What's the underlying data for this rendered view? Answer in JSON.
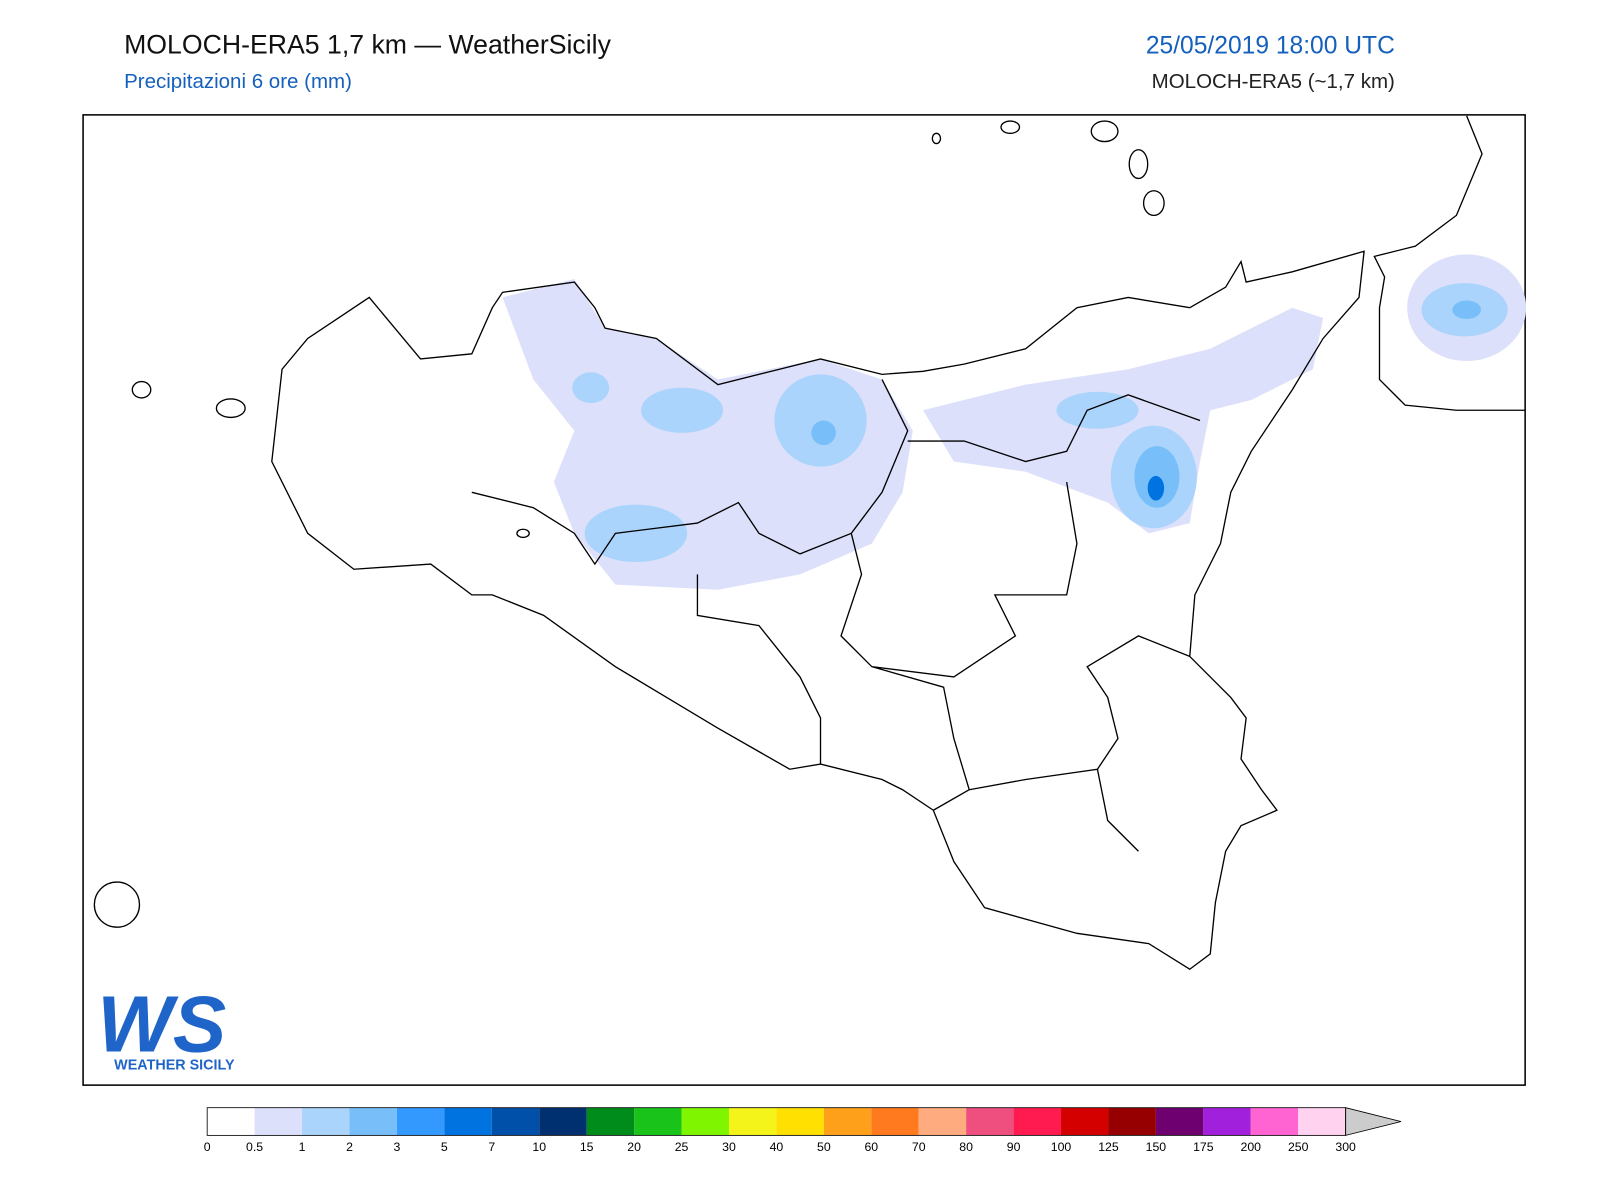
{
  "header": {
    "title": "MOLOCH-ERA5 1,7 km — WeatherSicily",
    "subtitle": "Precipitazioni 6 ore (mm)",
    "datetime": "25/05/2019 18:00 UTC",
    "model": "MOLOCH-ERA5 (~1,7 km)"
  },
  "logo": {
    "mark": "WS",
    "text": "WEATHER SICILY"
  },
  "colorbar": {
    "levels": [
      0,
      0.5,
      1,
      2,
      3,
      5,
      7,
      10,
      15,
      20,
      25,
      30,
      40,
      50,
      60,
      70,
      80,
      90,
      100,
      125,
      150,
      175,
      200,
      250,
      300
    ],
    "colors": [
      "#ffffff",
      "#dde0fa",
      "#aad4fb",
      "#78bff9",
      "#3399ff",
      "#0073e0",
      "#004fa8",
      "#003070",
      "#008c1a",
      "#19c319",
      "#7ff500",
      "#f4f41a",
      "#ffe000",
      "#ffa01a",
      "#ff7a1f",
      "#ffab80",
      "#ef4f7f",
      "#ff1a50",
      "#d40000",
      "#960000",
      "#6e0070",
      "#a020dc",
      "#ff64d2",
      "#ffd2f0"
    ],
    "extend_color": "#cccccc"
  }
}
